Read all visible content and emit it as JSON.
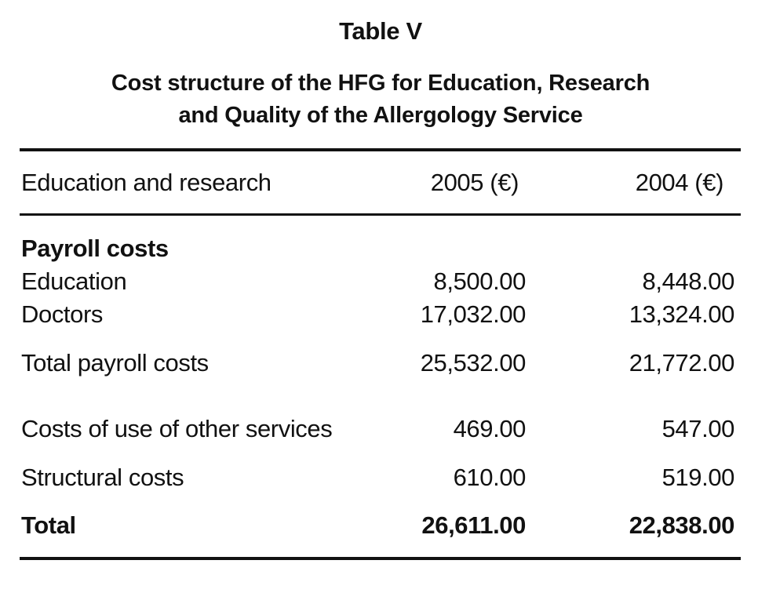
{
  "table_label": "Table V",
  "title_line1": "Cost structure of the HFG for Education, Research",
  "title_line2": "and Quality of the Allergology Service",
  "header": {
    "col1": "Education and research",
    "col2": "2005 (€)",
    "col3": "2004 (€)"
  },
  "section_payroll": "Payroll costs",
  "rows": [
    {
      "label": "Education",
      "v2005": "8,500.00",
      "v2004": "8,448.00"
    },
    {
      "label": "Doctors",
      "v2005": "17,032.00",
      "v2004": "13,324.00"
    },
    {
      "label": "Total payroll costs",
      "v2005": "25,532.00",
      "v2004": "21,772.00"
    },
    {
      "label": "Costs of use of other services",
      "v2005": "469.00",
      "v2004": "547.00"
    },
    {
      "label": "Structural costs",
      "v2005": "610.00",
      "v2004": "519.00"
    }
  ],
  "total": {
    "label": "Total",
    "v2005": "26,611.00",
    "v2004": "22,838.00"
  }
}
